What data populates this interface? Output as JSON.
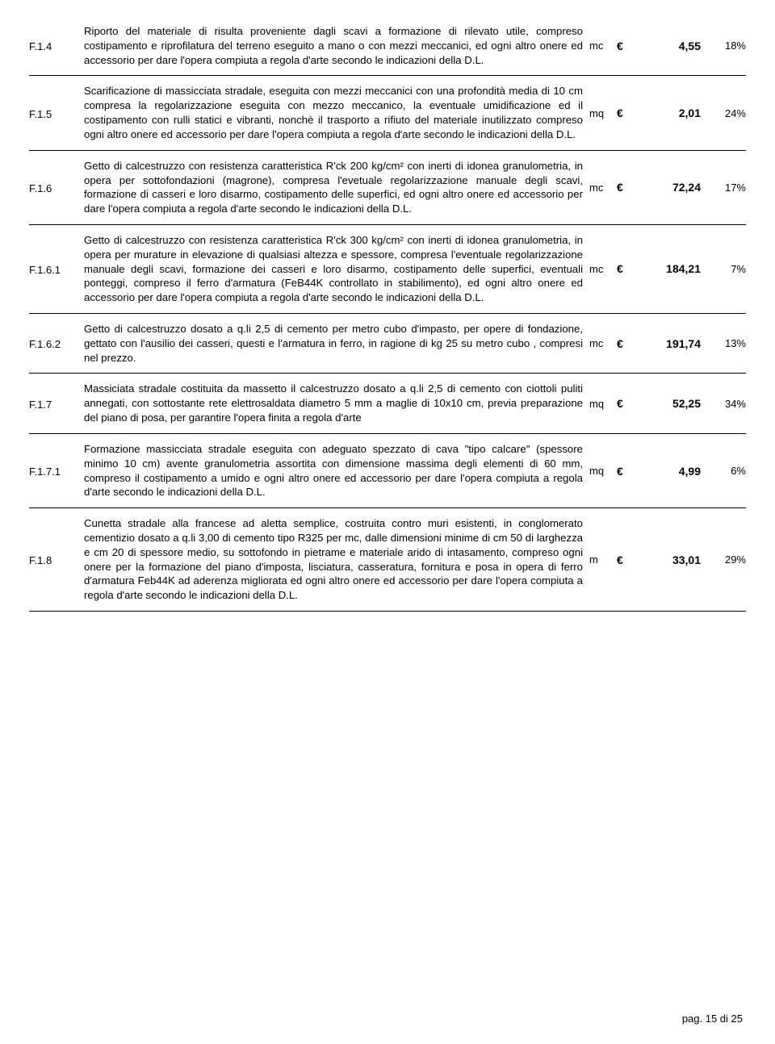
{
  "footer": "pag. 15 di 25",
  "euro_sign": "€",
  "rows": [
    {
      "code": "F.1.4",
      "desc": "Riporto del materiale di risulta proveniente dagli scavi a formazione di rilevato utile, compreso costipamento e riprofilatura del terreno eseguito a mano o con mezzi meccanici, ed ogni altro onere ed accessorio per dare l'opera compiuta a regola d'arte secondo le indicazioni della D.L.",
      "unit": "mc",
      "price": "4,55",
      "pct": "18%"
    },
    {
      "code": "F.1.5",
      "desc": "Scarificazione di massicciata stradale, eseguita con mezzi meccanici con una profondità media di 10 cm compresa la regolarizzazione eseguita con mezzo meccanico, la eventuale umidificazione ed il costipamento con rulli statici e vibranti, nonchè il trasporto a rifiuto del materiale inutilizzato compreso ogni altro onere ed accessorio per dare l'opera compiuta a regola d'arte secondo le indicazioni della D.L.",
      "unit": "mq",
      "price": "2,01",
      "pct": "24%"
    },
    {
      "code": "F.1.6",
      "desc": "Getto di calcestruzzo con resistenza caratteristica R'ck 200 kg/cm² con inerti di idonea granulometria, in opera per sottofondazioni (magrone), compresa l'evetuale regolarizzazione manuale degli scavi, formazione di casseri e loro disarmo, costipamento delle superfici, ed ogni altro onere ed accessorio per dare l'opera compiuta a regola d'arte secondo le indicazioni della D.L.",
      "unit": "mc",
      "price": "72,24",
      "pct": "17%"
    },
    {
      "code": "F.1.6.1",
      "desc": "Getto di calcestruzzo con resistenza caratteristica R'ck 300 kg/cm² con inerti di idonea granulometria, in opera per murature in elevazione di qualsiasi altezza e spessore, compresa l'eventuale regolarizzazione manuale degli scavi, formazione dei casseri e loro disarmo, costipamento delle superfici, eventuali ponteggi, compreso il ferro d'armatura (FeB44K controllato in stabilimento), ed ogni altro onere ed accessorio per dare l'opera compiuta a regola d'arte secondo le indicazioni della D.L.",
      "unit": "mc",
      "price": "184,21",
      "pct": "7%"
    },
    {
      "code": "F.1.6.2",
      "desc": "Getto di calcestruzzo dosato a q.li 2,5 di cemento per metro cubo d'impasto, per opere di fondazione, gettato con l'ausilio dei casseri, questi e l'armatura in ferro, in ragione di kg 25 su metro cubo , compresi nel prezzo.",
      "unit": "mc",
      "price": "191,74",
      "pct": "13%"
    },
    {
      "code": "F.1.7",
      "desc": "Massiciata stradale costituita da massetto il calcestruzzo dosato a q.li 2,5 di cemento con ciottoli puliti annegati, con sottostante rete elettrosaldata diametro 5 mm a maglie di 10x10 cm, previa preparazione del piano di posa, per garantire l'opera finita a regola d'arte",
      "unit": "mq",
      "price": "52,25",
      "pct": "34%"
    },
    {
      "code": "F.1.7.1",
      "desc": "Formazione massicciata stradale eseguita con adeguato spezzato di cava \"tipo calcare\" (spessore minimo 10 cm) avente granulometria assortita con dimensione massima degli elementi di 60 mm, compreso il costipamento a umido e ogni altro onere ed accessorio per dare l'opera compiuta a regola d'arte secondo le indicazioni della D.L.",
      "unit": "mq",
      "price": "4,99",
      "pct": "6%"
    },
    {
      "code": "F.1.8",
      "desc": "Cunetta stradale alla francese ad aletta semplice, costruita contro muri esistenti, in conglomerato cementizio dosato a q.li 3,00 di cemento tipo R325 per mc, dalle dimensioni minime di cm 50 di larghezza e cm 20 di spessore medio, su sottofondo in pietrame e materiale arido di intasamento, compreso ogni onere per la formazione del piano d'imposta, lisciatura, casseratura, fornitura e posa in opera di ferro d'armatura Feb44K ad aderenza migliorata ed ogni altro onere ed accessorio per dare l'opera compiuta a regola d'arte secondo le indicazioni della D.L.",
      "unit": "m",
      "price": "33,01",
      "pct": "29%"
    }
  ]
}
